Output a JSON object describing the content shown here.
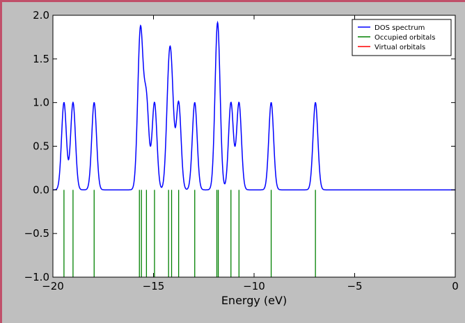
{
  "chart_data": {
    "type": "line",
    "title": "",
    "xlabel": "Energy (eV)",
    "ylabel": "",
    "xlim": [
      -20,
      0
    ],
    "ylim": [
      -1.0,
      2.0
    ],
    "x_ticks": [
      -20,
      -15,
      -10,
      -5,
      0
    ],
    "x_tick_labels": [
      "−20",
      "−15",
      "−10",
      "−5",
      "0"
    ],
    "y_ticks": [
      -1.0,
      -0.5,
      0.0,
      0.5,
      1.0,
      1.5,
      2.0
    ],
    "y_tick_labels": [
      "−1.0",
      "−0.5",
      "0.0",
      "0.5",
      "1.0",
      "1.5",
      "2.0"
    ],
    "grid": false,
    "legend_position": "top-right",
    "series": [
      {
        "name": "DOS spectrum",
        "kind": "gaussian-broadened",
        "color": "#0000ff",
        "gaussian_width_ev": 0.12,
        "centers": [
          -19.45,
          -19.0,
          -17.95,
          -15.7,
          -15.6,
          -15.35,
          -14.95,
          -14.25,
          -14.1,
          -13.75,
          -12.95,
          -11.85,
          -11.78,
          -11.15,
          -10.75,
          -9.15,
          -6.95
        ]
      },
      {
        "name": "Occupied orbitals",
        "kind": "sticks",
        "color": "#008000",
        "stick_from": 0.0,
        "stick_to": -1.0,
        "energies": [
          -19.45,
          -19.0,
          -17.95,
          -15.7,
          -15.6,
          -15.35,
          -14.95,
          -14.25,
          -14.1,
          -13.75,
          -12.95,
          -11.85,
          -11.78,
          -11.15,
          -10.75,
          -9.15,
          -6.95
        ]
      },
      {
        "name": "Virtual orbitals",
        "kind": "sticks",
        "color": "#ff0000",
        "energies": []
      }
    ]
  }
}
